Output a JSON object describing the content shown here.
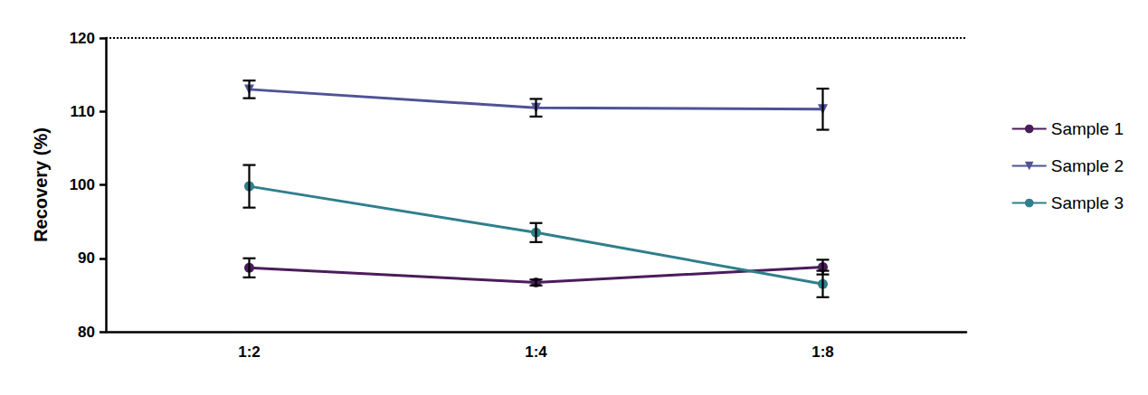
{
  "chart_data": {
    "type": "line",
    "y_label": "Recovery (%)",
    "categories": [
      "1:2",
      "1:4",
      "1:8"
    ],
    "series": [
      {
        "name": "Sample 1",
        "color": "#4b1c5b",
        "marker": "circle",
        "values": [
          88.7,
          86.7,
          88.8
        ],
        "errors": [
          1.3,
          0.4,
          1.0
        ]
      },
      {
        "name": "Sample 2",
        "color": "#4f5296",
        "marker": "triangle-down",
        "values": [
          113.0,
          110.5,
          110.3
        ],
        "errors": [
          1.2,
          1.2,
          2.8
        ]
      },
      {
        "name": "Sample 3",
        "color": "#2f7f8c",
        "marker": "circle",
        "values": [
          99.8,
          93.5,
          86.5
        ],
        "errors": [
          2.9,
          1.3,
          1.8
        ]
      }
    ],
    "ylim": [
      80,
      120
    ],
    "yticks": [
      80,
      90,
      100,
      110,
      120
    ],
    "grid": false,
    "legend": "right"
  }
}
